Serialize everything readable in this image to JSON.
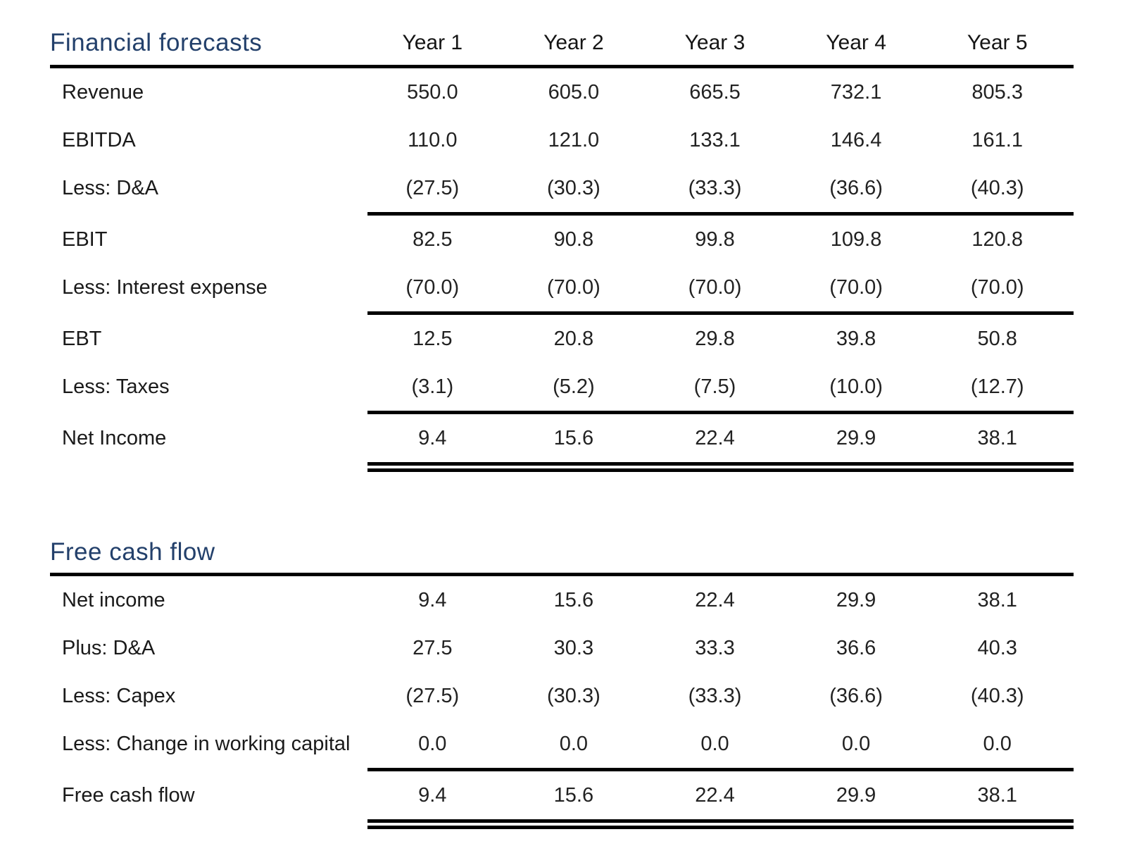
{
  "colors": {
    "title_accent": "#23406b",
    "body_text": "#1e1e1e",
    "rule": "#000000",
    "background": "#ffffff"
  },
  "tables": [
    {
      "title": "Financial forecasts",
      "columns": [
        "Year 1",
        "Year 2",
        "Year 3",
        "Year 4",
        "Year 5"
      ],
      "rows": [
        {
          "label": "Revenue",
          "values": [
            "550.0",
            "605.0",
            "665.5",
            "732.1",
            "805.3"
          ],
          "rule_above": false
        },
        {
          "label": "EBITDA",
          "values": [
            "110.0",
            "121.0",
            "133.1",
            "146.4",
            "161.1"
          ],
          "rule_above": false
        },
        {
          "label": "Less: D&A",
          "values": [
            "(27.5)",
            "(30.3)",
            "(33.3)",
            "(36.6)",
            "(40.3)"
          ],
          "rule_above": false
        },
        {
          "label": "EBIT",
          "values": [
            "82.5",
            "90.8",
            "99.8",
            "109.8",
            "120.8"
          ],
          "rule_above": true
        },
        {
          "label": "Less: Interest expense",
          "values": [
            "(70.0)",
            "(70.0)",
            "(70.0)",
            "(70.0)",
            "(70.0)"
          ],
          "rule_above": false
        },
        {
          "label": "EBT",
          "values": [
            "12.5",
            "20.8",
            "29.8",
            "39.8",
            "50.8"
          ],
          "rule_above": true
        },
        {
          "label": "Less: Taxes",
          "values": [
            "(3.1)",
            "(5.2)",
            "(7.5)",
            "(10.0)",
            "(12.7)"
          ],
          "rule_above": false
        },
        {
          "label": "Net Income",
          "values": [
            "9.4",
            "15.6",
            "22.4",
            "29.9",
            "38.1"
          ],
          "rule_above": true
        }
      ],
      "double_rule_below": true
    },
    {
      "title": "Free cash flow",
      "columns": [],
      "rows": [
        {
          "label": "Net income",
          "values": [
            "9.4",
            "15.6",
            "22.4",
            "29.9",
            "38.1"
          ],
          "rule_above": false
        },
        {
          "label": "Plus: D&A",
          "values": [
            "27.5",
            "30.3",
            "33.3",
            "36.6",
            "40.3"
          ],
          "rule_above": false
        },
        {
          "label": "Less: Capex",
          "values": [
            "(27.5)",
            "(30.3)",
            "(33.3)",
            "(36.6)",
            "(40.3)"
          ],
          "rule_above": false
        },
        {
          "label": "Less: Change in working capital",
          "values": [
            "0.0",
            "0.0",
            "0.0",
            "0.0",
            "0.0"
          ],
          "rule_above": false
        },
        {
          "label": "Free cash flow",
          "values": [
            "9.4",
            "15.6",
            "22.4",
            "29.9",
            "38.1"
          ],
          "rule_above": true
        }
      ],
      "double_rule_below": true
    }
  ]
}
